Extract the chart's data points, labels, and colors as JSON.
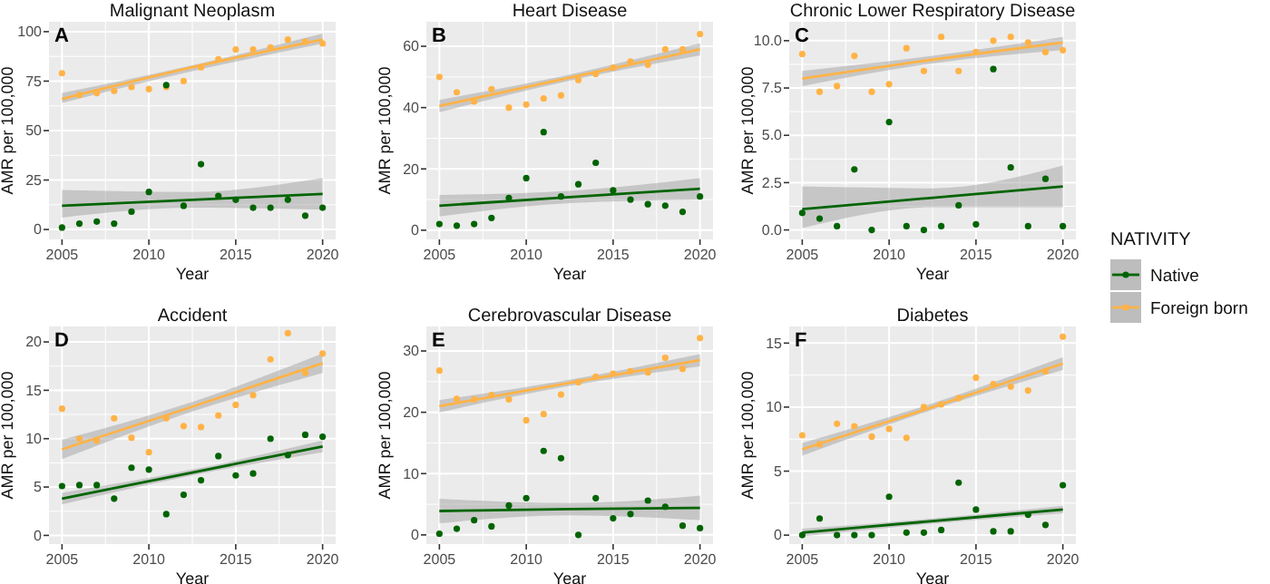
{
  "chart_data": [
    {
      "type": "scatter",
      "title": "Malignant Neoplasm",
      "xlabel": "Year",
      "ylabel": "AMR per 100,000",
      "annotations": [
        "A"
      ],
      "xlim": [
        2004.25,
        2020.75
      ],
      "ylim": [
        -5,
        105
      ],
      "xticks": [
        2005,
        2010,
        2015,
        2020
      ],
      "yticks": [
        0,
        25,
        50,
        75,
        100
      ],
      "grid": true,
      "marker": "circle",
      "legend": "right",
      "legend_title": "NATIVITY",
      "x": [
        2005,
        2006,
        2007,
        2008,
        2009,
        2010,
        2011,
        2012,
        2013,
        2014,
        2015,
        2016,
        2017,
        2018,
        2019,
        2020
      ],
      "series": [
        {
          "name": "Native",
          "color": "#006400",
          "values": [
            1,
            3,
            4,
            3,
            9,
            19,
            73,
            12,
            33,
            17,
            15,
            11,
            11,
            15,
            7,
            11
          ]
        },
        {
          "name": "Foreign born",
          "color": "#ffb347",
          "values": [
            79,
            68,
            69,
            70,
            72,
            71,
            72,
            75,
            82,
            86,
            91,
            91,
            92,
            96,
            95,
            94
          ]
        },
        {
          "type": "line",
          "marker": "none",
          "color": "#006400",
          "x": [
            2005,
            2012.5,
            2020
          ],
          "values": [
            12,
            15,
            18
          ],
          "lower": [
            6,
            11,
            10
          ],
          "upper": [
            20,
            19,
            26
          ]
        },
        {
          "type": "line",
          "marker": "none",
          "color": "#ffb347",
          "x": [
            2005,
            2012.5,
            2020
          ],
          "values": [
            66,
            82,
            96
          ],
          "lower": [
            64,
            80,
            94
          ],
          "upper": [
            69,
            83,
            99
          ]
        }
      ]
    },
    {
      "type": "scatter",
      "title": "Heart Disease",
      "xlabel": "Year",
      "ylabel": "AMR per 100,000",
      "annotations": [
        "B"
      ],
      "xlim": [
        2004.25,
        2020.75
      ],
      "ylim": [
        -3,
        68
      ],
      "xticks": [
        2005,
        2010,
        2015,
        2020
      ],
      "yticks": [
        0,
        20,
        40,
        60
      ],
      "grid": true,
      "marker": "circle",
      "x": [
        2005,
        2006,
        2007,
        2008,
        2009,
        2010,
        2011,
        2012,
        2013,
        2014,
        2015,
        2016,
        2017,
        2018,
        2019,
        2020
      ],
      "series": [
        {
          "color": "#006400",
          "values": [
            2,
            1.5,
            2,
            4,
            10.5,
            17,
            32,
            11,
            15,
            22,
            13,
            10,
            8.5,
            8,
            6,
            11
          ]
        },
        {
          "color": "#ffb347",
          "values": [
            50,
            45,
            42,
            46,
            40,
            41,
            43,
            44,
            49,
            51,
            53,
            55,
            54,
            59,
            59,
            64
          ]
        },
        {
          "type": "line",
          "marker": "none",
          "color": "#006400",
          "x": [
            2005,
            2012.5,
            2020
          ],
          "values": [
            8,
            10.8,
            13.5
          ],
          "lower": [
            4.5,
            8.8,
            10
          ],
          "upper": [
            11.5,
            12.8,
            17
          ]
        },
        {
          "type": "line",
          "marker": "none",
          "color": "#ffb347",
          "x": [
            2005,
            2012.5,
            2020
          ],
          "values": [
            40.5,
            49.8,
            59
          ],
          "lower": [
            38.5,
            48.8,
            57
          ],
          "upper": [
            42.5,
            50.8,
            61
          ]
        }
      ]
    },
    {
      "type": "scatter",
      "title": "Chronic Lower Respiratory Disease",
      "xlabel": "Year",
      "ylabel": "AMR per 100,000",
      "annotations": [
        "C"
      ],
      "xlim": [
        2004.25,
        2020.75
      ],
      "ylim": [
        -0.5,
        11
      ],
      "xticks": [
        2005,
        2010,
        2015,
        2020
      ],
      "yticks": [
        {
          "value": 0,
          "label": "0.0"
        },
        2.5,
        {
          "value": 5,
          "label": "5.0"
        },
        7.5,
        {
          "value": 10,
          "label": "10.0"
        }
      ],
      "grid": true,
      "marker": "circle",
      "x": [
        2005,
        2006,
        2007,
        2008,
        2009,
        2010,
        2011,
        2012,
        2013,
        2014,
        2015,
        2016,
        2017,
        2018,
        2019,
        2020
      ],
      "series": [
        {
          "color": "#006400",
          "values": [
            0.9,
            0.6,
            0.2,
            3.2,
            0,
            5.7,
            0.2,
            0,
            0.2,
            1.3,
            0.3,
            8.5,
            3.3,
            0.2,
            2.7,
            0.2
          ]
        },
        {
          "color": "#ffb347",
          "values": [
            9.3,
            7.3,
            7.6,
            9.2,
            7.3,
            7.7,
            9.6,
            8.4,
            10.2,
            8.4,
            9.4,
            10,
            10.2,
            9.9,
            9.4,
            9.5
          ]
        },
        {
          "type": "line",
          "marker": "none",
          "color": "#006400",
          "x": [
            2005,
            2012.5,
            2020
          ],
          "values": [
            1.1,
            1.7,
            2.3
          ],
          "lower": [
            0.1,
            1.2,
            1.2
          ],
          "upper": [
            2.3,
            2.2,
            3.4
          ]
        },
        {
          "type": "line",
          "marker": "none",
          "color": "#ffb347",
          "x": [
            2005,
            2012.5,
            2020
          ],
          "values": [
            8,
            9,
            9.9
          ],
          "lower": [
            7.6,
            8.8,
            9.5
          ],
          "upper": [
            8.4,
            9.2,
            10.2
          ]
        }
      ]
    },
    {
      "type": "scatter",
      "title": "Accident",
      "xlabel": "Year",
      "ylabel": "AMR per 100,000",
      "annotations": [
        "D"
      ],
      "xlim": [
        2004.25,
        2020.75
      ],
      "ylim": [
        -0.9,
        21.6
      ],
      "xticks": [
        2005,
        2010,
        2015,
        2020
      ],
      "yticks": [
        0,
        5,
        10,
        15,
        20
      ],
      "grid": true,
      "marker": "circle",
      "x": [
        2005,
        2006,
        2007,
        2008,
        2009,
        2010,
        2011,
        2012,
        2013,
        2014,
        2015,
        2016,
        2017,
        2018,
        2019,
        2020
      ],
      "series": [
        {
          "color": "#006400",
          "values": [
            5.1,
            5.2,
            5.2,
            3.8,
            7,
            6.8,
            2.2,
            4.2,
            5.7,
            8.2,
            6.2,
            6.4,
            10,
            8.3,
            10.4,
            10.2
          ]
        },
        {
          "color": "#ffb347",
          "values": [
            13.1,
            10,
            9.8,
            12.1,
            10.1,
            8.6,
            12.1,
            11.3,
            11.2,
            12.4,
            13.5,
            14.5,
            18.2,
            20.9,
            16.8,
            18.8
          ]
        },
        {
          "type": "line",
          "marker": "none",
          "color": "#006400",
          "x": [
            2005,
            2012.5,
            2020
          ],
          "values": [
            3.8,
            6.5,
            9.2
          ],
          "lower": [
            3.2,
            6.2,
            8.6
          ],
          "upper": [
            4.4,
            6.8,
            9.8
          ]
        },
        {
          "type": "line",
          "marker": "none",
          "color": "#ffb347",
          "x": [
            2005,
            2012.5,
            2020
          ],
          "values": [
            8.9,
            13.3,
            17.8
          ],
          "lower": [
            7.9,
            12.8,
            16.8
          ],
          "upper": [
            9.9,
            13.8,
            18.8
          ]
        }
      ]
    },
    {
      "type": "scatter",
      "title": "Cerebrovascular Disease",
      "xlabel": "Year",
      "ylabel": "AMR per 100,000",
      "annotations": [
        "E"
      ],
      "xlim": [
        2004.25,
        2020.75
      ],
      "ylim": [
        -1.5,
        34
      ],
      "xticks": [
        2005,
        2010,
        2015,
        2020
      ],
      "yticks": [
        0,
        10,
        20,
        30
      ],
      "grid": true,
      "marker": "circle",
      "x": [
        2005,
        2006,
        2007,
        2008,
        2009,
        2010,
        2011,
        2012,
        2013,
        2014,
        2015,
        2016,
        2017,
        2018,
        2019,
        2020
      ],
      "series": [
        {
          "color": "#006400",
          "values": [
            0.2,
            1,
            2.4,
            1.4,
            4.8,
            6,
            13.7,
            12.5,
            0,
            6,
            2.7,
            3.4,
            5.6,
            4.6,
            1.5,
            1.1
          ]
        },
        {
          "color": "#ffb347",
          "values": [
            26.8,
            22.2,
            22.1,
            22.8,
            22.1,
            18.7,
            19.7,
            22.9,
            24.9,
            25.8,
            26.3,
            26.7,
            26.5,
            28.9,
            27.1,
            32.1
          ]
        },
        {
          "type": "line",
          "marker": "none",
          "color": "#006400",
          "x": [
            2005,
            2012.5,
            2020
          ],
          "values": [
            3.9,
            4.2,
            4.4
          ],
          "lower": [
            1.9,
            3.2,
            2.4
          ],
          "upper": [
            5.9,
            5.2,
            6.4
          ]
        },
        {
          "type": "line",
          "marker": "none",
          "color": "#ffb347",
          "x": [
            2005,
            2012.5,
            2020
          ],
          "values": [
            21,
            24.8,
            28.5
          ],
          "lower": [
            20,
            24.3,
            27.5
          ],
          "upper": [
            22,
            25.3,
            29.5
          ]
        }
      ]
    },
    {
      "type": "scatter",
      "title": "Diabetes",
      "xlabel": "Year",
      "ylabel": "AMR per 100,000",
      "annotations": [
        "F"
      ],
      "xlim": [
        2004.25,
        2020.75
      ],
      "ylim": [
        -0.7,
        16.3
      ],
      "xticks": [
        2005,
        2010,
        2015,
        2020
      ],
      "yticks": [
        0,
        5,
        10,
        15
      ],
      "grid": true,
      "marker": "circle",
      "x": [
        2005,
        2006,
        2007,
        2008,
        2009,
        2010,
        2011,
        2012,
        2013,
        2014,
        2015,
        2016,
        2017,
        2018,
        2019,
        2020
      ],
      "series": [
        {
          "color": "#006400",
          "values": [
            0,
            1.3,
            0,
            0,
            0,
            3,
            0.2,
            0.2,
            0.4,
            4.1,
            2,
            0.3,
            0.3,
            1.6,
            0.8,
            3.9
          ]
        },
        {
          "color": "#ffb347",
          "values": [
            7.8,
            7.1,
            8.7,
            8.5,
            7.7,
            8.3,
            7.6,
            10,
            10.2,
            10.7,
            12.3,
            11.8,
            11.6,
            11.3,
            12.8,
            15.5
          ]
        },
        {
          "type": "line",
          "marker": "none",
          "color": "#006400",
          "x": [
            2005,
            2012.5,
            2020
          ],
          "values": [
            0.2,
            1.1,
            2
          ],
          "lower": [
            -0.1,
            0.9,
            1.7
          ],
          "upper": [
            0.5,
            1.3,
            2.3
          ]
        },
        {
          "type": "line",
          "marker": "none",
          "color": "#ffb347",
          "x": [
            2005,
            2012.5,
            2020
          ],
          "values": [
            6.7,
            10,
            13.4
          ],
          "lower": [
            6.2,
            9.8,
            12.9
          ],
          "upper": [
            7.2,
            10.3,
            13.9
          ]
        }
      ]
    }
  ]
}
